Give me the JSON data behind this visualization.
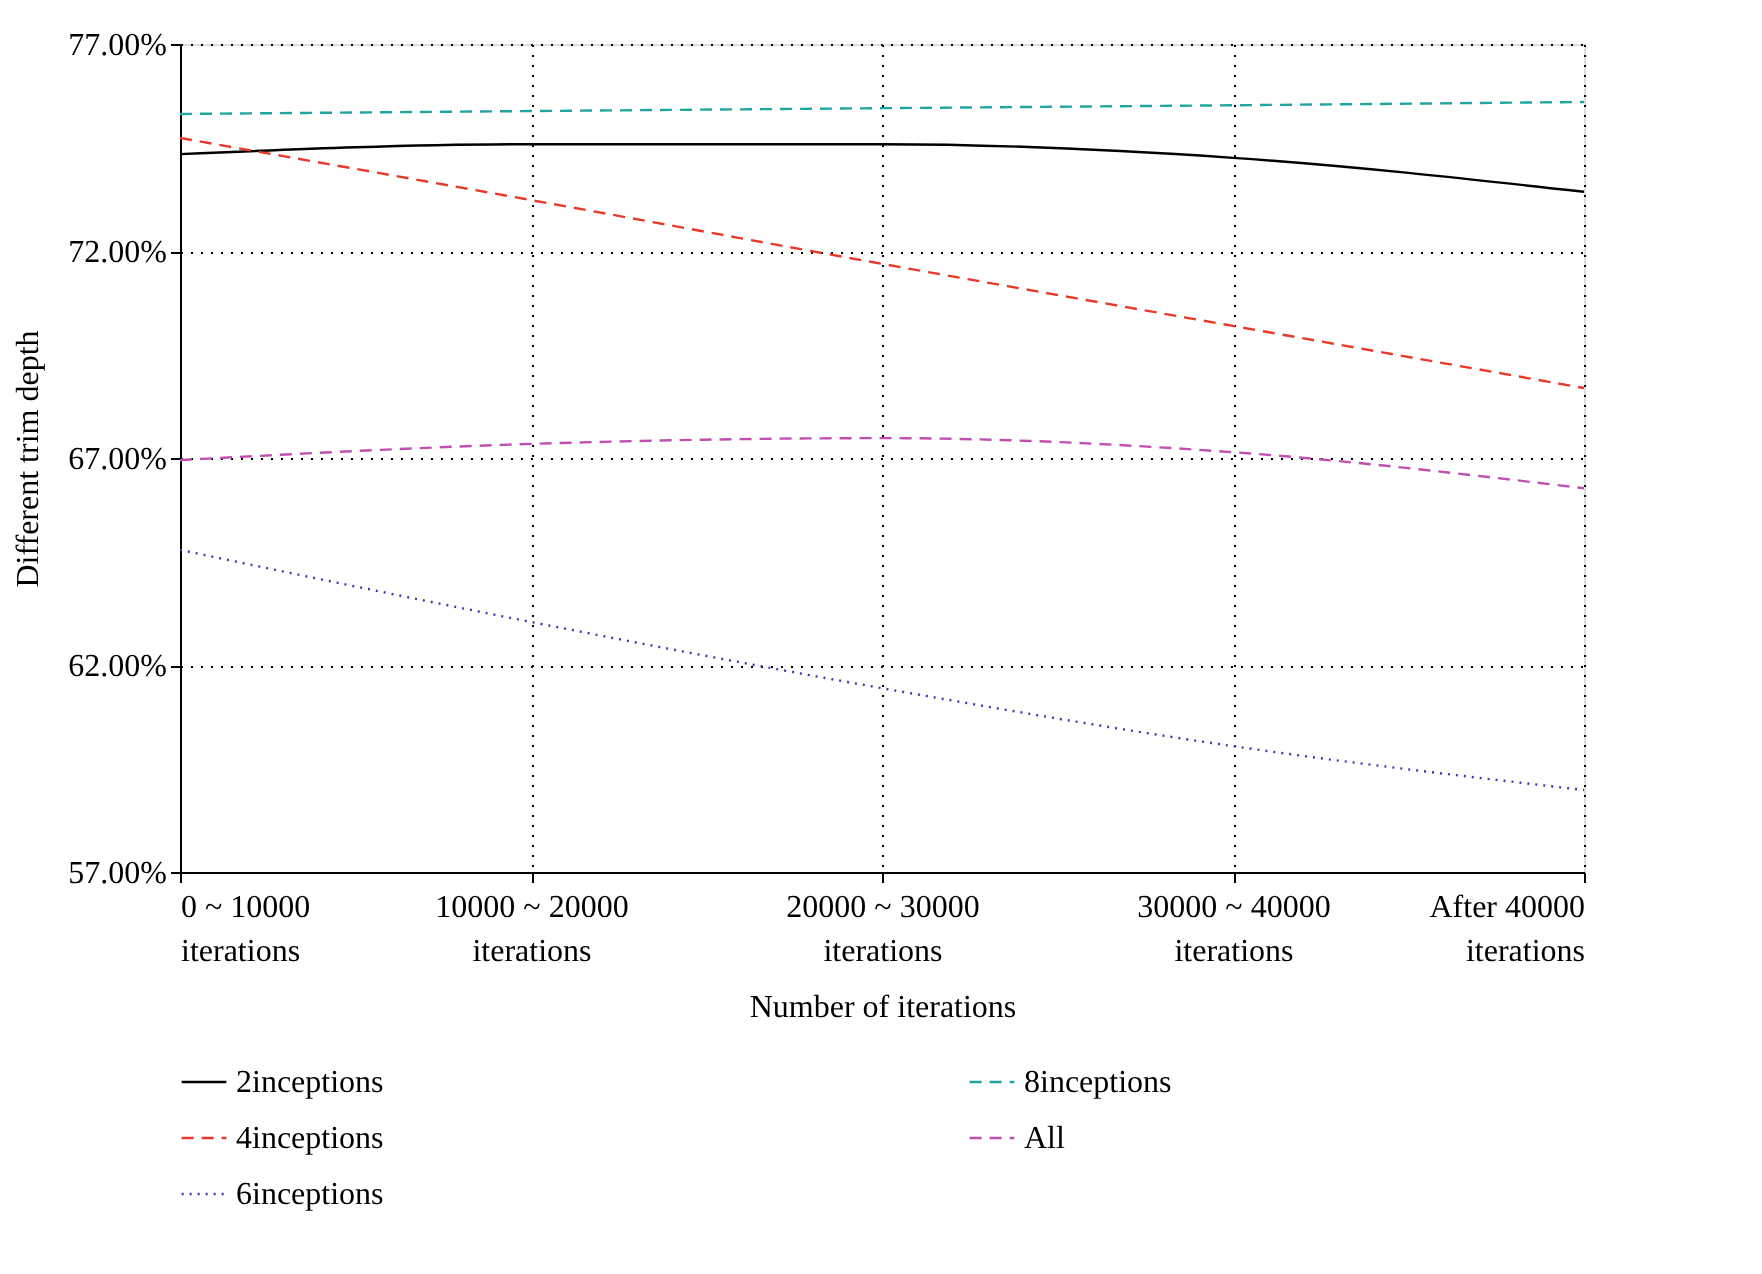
{
  "chart_data": {
    "type": "line",
    "xlabel": "Number of iterations",
    "ylabel": "Different trim depth",
    "categories": [
      "0 ~ 10000 iterations",
      "10000 ~ 20000 iterations",
      "20000 ~ 30000 iterations",
      "30000 ~ 40000 iterations",
      "After 40000 iterations"
    ],
    "series": [
      {
        "name": "2inceptions",
        "color": "#000000",
        "line_style": "solid",
        "values": [
          74.34,
          74.58,
          74.58,
          74.25,
          73.43
        ]
      },
      {
        "name": "4inceptions",
        "color": "#e8392b",
        "line_style": "dashed",
        "values": [
          74.73,
          73.23,
          71.69,
          70.19,
          68.69
        ]
      },
      {
        "name": "6inceptions",
        "color": "#3a3ab5",
        "line_style": "dotted",
        "values": [
          64.78,
          63.04,
          61.44,
          60.04,
          58.98
        ]
      },
      {
        "name": "8inceptions",
        "color": "#20a5a0",
        "line_style": "dashed",
        "values": [
          75.31,
          75.38,
          75.45,
          75.52,
          75.6
        ]
      },
      {
        "name": "All",
        "color": "#c050b0",
        "line_style": "dashed",
        "values": [
          66.95,
          67.34,
          67.48,
          67.14,
          66.27
        ]
      }
    ],
    "ylim": [
      57,
      77
    ],
    "yticks": [
      {
        "value": 57,
        "label": "57.00%"
      },
      {
        "value": 62,
        "label": "62.00%"
      },
      {
        "value": 67,
        "label": "67.00%"
      },
      {
        "value": 72,
        "label": "72.00%"
      },
      {
        "value": 77,
        "label": "77.00%"
      }
    ],
    "grid": true,
    "legend": "bottom",
    "marker": "none"
  }
}
